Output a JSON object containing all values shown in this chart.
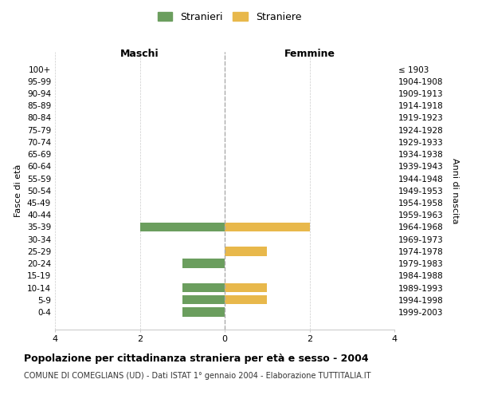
{
  "age_groups": [
    "100+",
    "95-99",
    "90-94",
    "85-89",
    "80-84",
    "75-79",
    "70-74",
    "65-69",
    "60-64",
    "55-59",
    "50-54",
    "45-49",
    "40-44",
    "35-39",
    "30-34",
    "25-29",
    "20-24",
    "15-19",
    "10-14",
    "5-9",
    "0-4"
  ],
  "birth_years": [
    "≤ 1903",
    "1904-1908",
    "1909-1913",
    "1914-1918",
    "1919-1923",
    "1924-1928",
    "1929-1933",
    "1934-1938",
    "1939-1943",
    "1944-1948",
    "1949-1953",
    "1954-1958",
    "1959-1963",
    "1964-1968",
    "1969-1973",
    "1974-1978",
    "1979-1983",
    "1984-1988",
    "1989-1993",
    "1994-1998",
    "1999-2003"
  ],
  "maschi": [
    0,
    0,
    0,
    0,
    0,
    0,
    0,
    0,
    0,
    0,
    0,
    0,
    0,
    2,
    0,
    0,
    1,
    0,
    1,
    1,
    1
  ],
  "femmine": [
    0,
    0,
    0,
    0,
    0,
    0,
    0,
    0,
    0,
    0,
    0,
    0,
    0,
    2,
    0,
    1,
    0,
    0,
    1,
    1,
    0
  ],
  "color_maschi": "#6b9e5e",
  "color_femmine": "#e8b84b",
  "title": "Popolazione per cittadinanza straniera per età e sesso - 2004",
  "subtitle": "COMUNE DI COMEGLIANS (UD) - Dati ISTAT 1° gennaio 2004 - Elaborazione TUTTITALIA.IT",
  "ylabel_left": "Fasce di età",
  "ylabel_right": "Anni di nascita",
  "xlabel_left": "Maschi",
  "xlabel_right": "Femmine",
  "legend_maschi": "Stranieri",
  "legend_femmine": "Straniere",
  "xlim": 4,
  "background_color": "#ffffff",
  "grid_color": "#cccccc"
}
